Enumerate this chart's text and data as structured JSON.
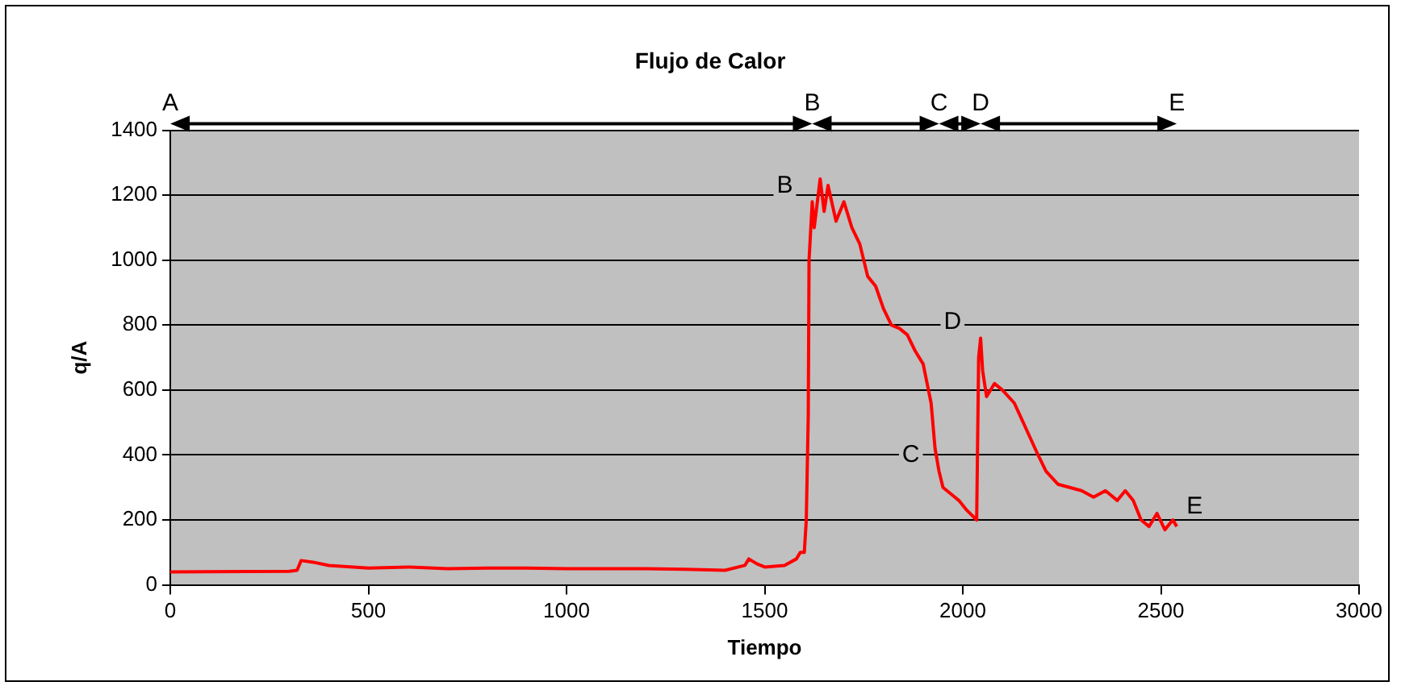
{
  "chart_data": {
    "type": "line",
    "title": "Flujo de Calor",
    "xlabel": "Tiempo",
    "ylabel": "q/A",
    "xlim": [
      0,
      3000
    ],
    "xticks": [
      0,
      500,
      1000,
      1500,
      2000,
      2500,
      3000
    ],
    "ylim": [
      0,
      1400
    ],
    "yticks": [
      0,
      200,
      400,
      600,
      800,
      1000,
      1200,
      1400
    ],
    "grid": "y",
    "legend": false,
    "marker": "none",
    "line_style": "solid",
    "series": [
      {
        "color": "#ff0000",
        "x": [
          0,
          300,
          320,
          330,
          360,
          400,
          500,
          600,
          700,
          800,
          900,
          1000,
          1100,
          1200,
          1300,
          1400,
          1450,
          1460,
          1480,
          1500,
          1550,
          1580,
          1590,
          1600,
          1605,
          1610,
          1612,
          1620,
          1625,
          1640,
          1650,
          1660,
          1680,
          1700,
          1720,
          1740,
          1760,
          1780,
          1800,
          1820,
          1840,
          1860,
          1880,
          1900,
          1910,
          1920,
          1930,
          1940,
          1950,
          1970,
          1990,
          2010,
          2035,
          2040,
          2045,
          2050,
          2060,
          2080,
          2100,
          2130,
          2160,
          2190,
          2210,
          2240,
          2270,
          2300,
          2330,
          2360,
          2390,
          2410,
          2430,
          2450,
          2470,
          2490,
          2510,
          2530,
          2540
        ],
        "values": [
          40,
          42,
          45,
          75,
          70,
          60,
          52,
          55,
          50,
          52,
          52,
          50,
          50,
          50,
          48,
          45,
          60,
          80,
          65,
          55,
          60,
          80,
          100,
          100,
          200,
          520,
          1000,
          1180,
          1100,
          1250,
          1150,
          1230,
          1120,
          1180,
          1100,
          1050,
          950,
          920,
          850,
          800,
          790,
          770,
          720,
          680,
          620,
          560,
          420,
          350,
          300,
          280,
          260,
          230,
          200,
          700,
          760,
          660,
          580,
          620,
          600,
          560,
          480,
          400,
          350,
          310,
          300,
          290,
          270,
          290,
          260,
          290,
          260,
          200,
          180,
          220,
          170,
          200,
          180
        ]
      }
    ],
    "annotations": [
      "A",
      "B",
      "C",
      "D",
      "E",
      {
        "text": "B",
        "x": 1620,
        "y": 1180
      },
      {
        "text": "C",
        "x": 1940,
        "y": 350
      },
      {
        "text": "D",
        "x": 2045,
        "y": 760
      },
      {
        "text": "E",
        "x": 2540,
        "y": 180
      }
    ]
  }
}
